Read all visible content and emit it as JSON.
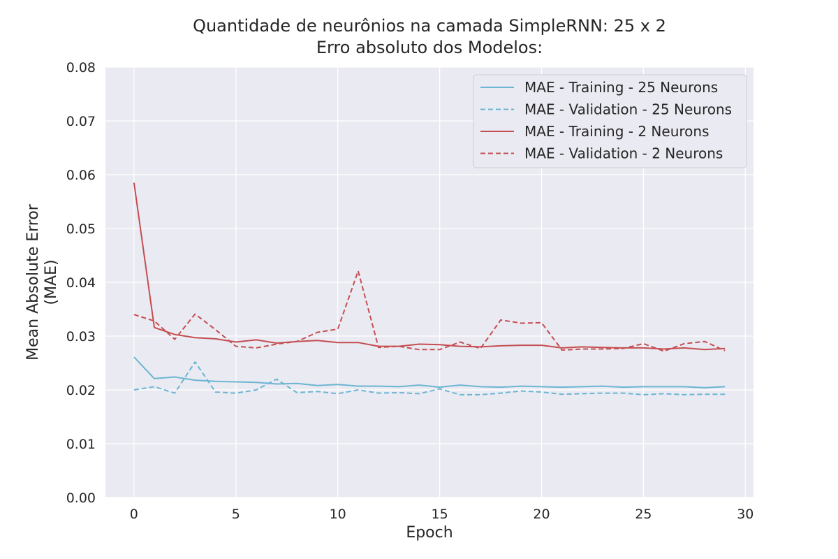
{
  "chart_data": {
    "type": "line",
    "title": "Quantidade de neurônios na camada SimpleRNN: 25 x 2",
    "subtitle": "Erro absoluto dos Modelos:",
    "xlabel": "Epoch",
    "ylabel_line1": "Mean Absolute Error",
    "ylabel_line2": "(MAE)",
    "xlim": [
      -1.4,
      30.4
    ],
    "ylim": [
      0,
      0.08
    ],
    "xticks": [
      0,
      5,
      10,
      15,
      20,
      25,
      30
    ],
    "xtick_labels": [
      "0",
      "5",
      "10",
      "15",
      "20",
      "25",
      "30"
    ],
    "yticks": [
      0,
      0.01,
      0.02,
      0.03,
      0.04,
      0.05,
      0.06,
      0.07,
      0.08
    ],
    "ytick_labels": [
      "0.00",
      "0.01",
      "0.02",
      "0.03",
      "0.04",
      "0.05",
      "0.06",
      "0.07",
      "0.08"
    ],
    "grid": true,
    "legend_position": "top-right",
    "x": [
      0,
      1,
      2,
      3,
      4,
      5,
      6,
      7,
      8,
      9,
      10,
      11,
      12,
      13,
      14,
      15,
      16,
      17,
      18,
      19,
      20,
      21,
      22,
      23,
      24,
      25,
      26,
      27,
      28,
      29
    ],
    "series": [
      {
        "name": "MAE - Training - 25 Neurons",
        "color": "#6cb5d3",
        "dash": "solid",
        "values": [
          0.0261,
          0.0221,
          0.0224,
          0.0218,
          0.0216,
          0.0215,
          0.0214,
          0.0211,
          0.0212,
          0.0208,
          0.021,
          0.0207,
          0.0207,
          0.0206,
          0.0209,
          0.0205,
          0.0209,
          0.0206,
          0.0205,
          0.0207,
          0.0206,
          0.0205,
          0.0206,
          0.0207,
          0.0205,
          0.0206,
          0.0206,
          0.0206,
          0.0204,
          0.0206
        ]
      },
      {
        "name": "MAE - Validation - 25 Neurons",
        "color": "#6cb5d3",
        "dash": "dashed",
        "values": [
          0.02,
          0.0206,
          0.0194,
          0.0252,
          0.0196,
          0.0194,
          0.02,
          0.022,
          0.0195,
          0.0197,
          0.0193,
          0.02,
          0.0194,
          0.0195,
          0.0193,
          0.0202,
          0.0191,
          0.0191,
          0.0194,
          0.0198,
          0.0196,
          0.0192,
          0.0193,
          0.0194,
          0.0194,
          0.0191,
          0.0193,
          0.0191,
          0.0192,
          0.0192
        ]
      },
      {
        "name": "MAE - Training - 2 Neurons",
        "color": "#c44e52",
        "dash": "solid",
        "values": [
          0.0585,
          0.0316,
          0.0303,
          0.0297,
          0.0295,
          0.0289,
          0.0293,
          0.0287,
          0.029,
          0.0292,
          0.0288,
          0.0288,
          0.0281,
          0.0281,
          0.0285,
          0.0284,
          0.0281,
          0.028,
          0.0282,
          0.0283,
          0.0283,
          0.0278,
          0.028,
          0.0279,
          0.0278,
          0.0278,
          0.0276,
          0.0278,
          0.0275,
          0.0277
        ]
      },
      {
        "name": "MAE - Validation - 2 Neurons",
        "color": "#c44e52",
        "dash": "dashed",
        "values": [
          0.034,
          0.0328,
          0.0294,
          0.0341,
          0.0312,
          0.0281,
          0.0278,
          0.0285,
          0.029,
          0.0307,
          0.0313,
          0.0421,
          0.0279,
          0.0281,
          0.0275,
          0.0275,
          0.0289,
          0.0277,
          0.033,
          0.0324,
          0.0325,
          0.0274,
          0.0276,
          0.0276,
          0.0277,
          0.0286,
          0.0272,
          0.0286,
          0.029,
          0.0273
        ]
      }
    ]
  }
}
